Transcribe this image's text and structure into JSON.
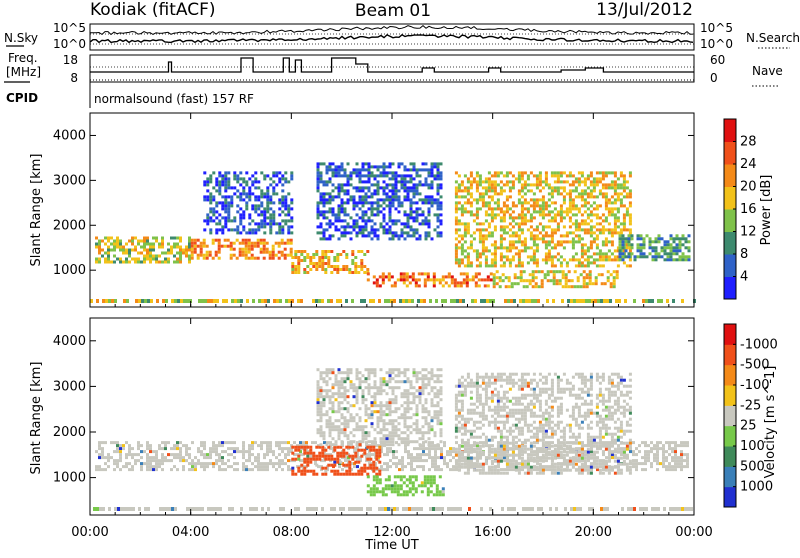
{
  "header": {
    "site": "Kodiak (fitACF)",
    "beam": "Beam 01",
    "date": "13/Jul/2012"
  },
  "params": {
    "nsky_label": "N.Sky",
    "nsearch_label": "N.Search",
    "freq_label_line1": "Freq.",
    "freq_label_line2": "[MHz]",
    "nave_label": "Nave",
    "cpid_label": "CPID",
    "cpid_value": "normalsound (fast) 157 RF",
    "noise_left_ticks": [
      "10^5",
      "10^0"
    ],
    "noise_right_ticks": [
      "10^5",
      "10^0"
    ],
    "freq_ticks": [
      "18",
      "8"
    ],
    "nave_ticks": [
      "60",
      "0"
    ]
  },
  "chart_data": [
    {
      "type": "heatmap",
      "title": "",
      "xlabel": "Time UT",
      "ylabel": "Slant Range [km]",
      "x_ticks": [
        "00:00",
        "04:00",
        "08:00",
        "12:00",
        "16:00",
        "20:00",
        "00:00"
      ],
      "y_ticks": [
        "1000",
        "2000",
        "3000",
        "4000"
      ],
      "xlim": [
        0,
        24
      ],
      "ylim": [
        180,
        4500
      ],
      "colorbar_label": "Power [dB]",
      "colorbar_ticks": [
        "4",
        "8",
        "12",
        "16",
        "20",
        "24",
        "28"
      ],
      "colorbar_colors": [
        "#1f1fff",
        "#2f62c8",
        "#3d8a6e",
        "#7fc24a",
        "#f2c21a",
        "#f48a18",
        "#f0501a",
        "#e01010"
      ],
      "bands": [
        {
          "t0": 0.2,
          "t1": 4.0,
          "r0": 1200,
          "r1": 1750,
          "v": 18
        },
        {
          "t0": 4.0,
          "t1": 8.0,
          "r0": 1250,
          "r1": 1700,
          "v": 24
        },
        {
          "t0": 8.0,
          "t1": 11.0,
          "r0": 950,
          "r1": 1450,
          "v": 22
        },
        {
          "t0": 11.0,
          "t1": 16.0,
          "r0": 650,
          "r1": 950,
          "v": 26
        },
        {
          "t0": 16.0,
          "t1": 21.0,
          "r0": 650,
          "r1": 1000,
          "v": 20
        },
        {
          "t0": 14.5,
          "t1": 21.5,
          "r0": 1100,
          "r1": 3200,
          "v": 20
        },
        {
          "t0": 21.0,
          "t1": 23.8,
          "r0": 1200,
          "r1": 1800,
          "v": 12
        },
        {
          "t0": 9.0,
          "t1": 14.0,
          "r0": 1700,
          "r1": 3400,
          "v": 8
        },
        {
          "t0": 4.5,
          "t1": 8.0,
          "r0": 1800,
          "r1": 3200,
          "v": 8
        }
      ]
    },
    {
      "type": "heatmap",
      "title": "",
      "xlabel": "Time UT",
      "ylabel": "Slant Range [km]",
      "x_ticks": [
        "00:00",
        "04:00",
        "08:00",
        "12:00",
        "16:00",
        "20:00",
        "00:00"
      ],
      "y_ticks": [
        "1000",
        "2000",
        "3000",
        "4000"
      ],
      "xlim": [
        0,
        24
      ],
      "ylim": [
        180,
        4500
      ],
      "colorbar_label": "Velocity [m s^-1]",
      "colorbar_ticks": [
        "1000",
        "500",
        "100",
        "25",
        "-25",
        "-100",
        "-500",
        "-1000"
      ],
      "colorbar_colors": [
        "#2030d0",
        "#3a7fb8",
        "#3f8a5a",
        "#77c94a",
        "#c8c8bf",
        "#f2c21a",
        "#f48a18",
        "#f0501a",
        "#e01010"
      ],
      "bands": [
        {
          "t0": 0.2,
          "t1": 23.8,
          "r0": 1200,
          "r1": 1800,
          "v": 0
        },
        {
          "t0": 8.0,
          "t1": 11.5,
          "r0": 1100,
          "r1": 1700,
          "v": -300
        },
        {
          "t0": 11.0,
          "t1": 14.0,
          "r0": 650,
          "r1": 1050,
          "v": 120
        },
        {
          "t0": 14.5,
          "t1": 21.5,
          "r0": 1100,
          "r1": 3300,
          "v": 0
        },
        {
          "t0": 9.0,
          "t1": 14.0,
          "r0": 1700,
          "r1": 3400,
          "v": 0
        }
      ]
    }
  ]
}
